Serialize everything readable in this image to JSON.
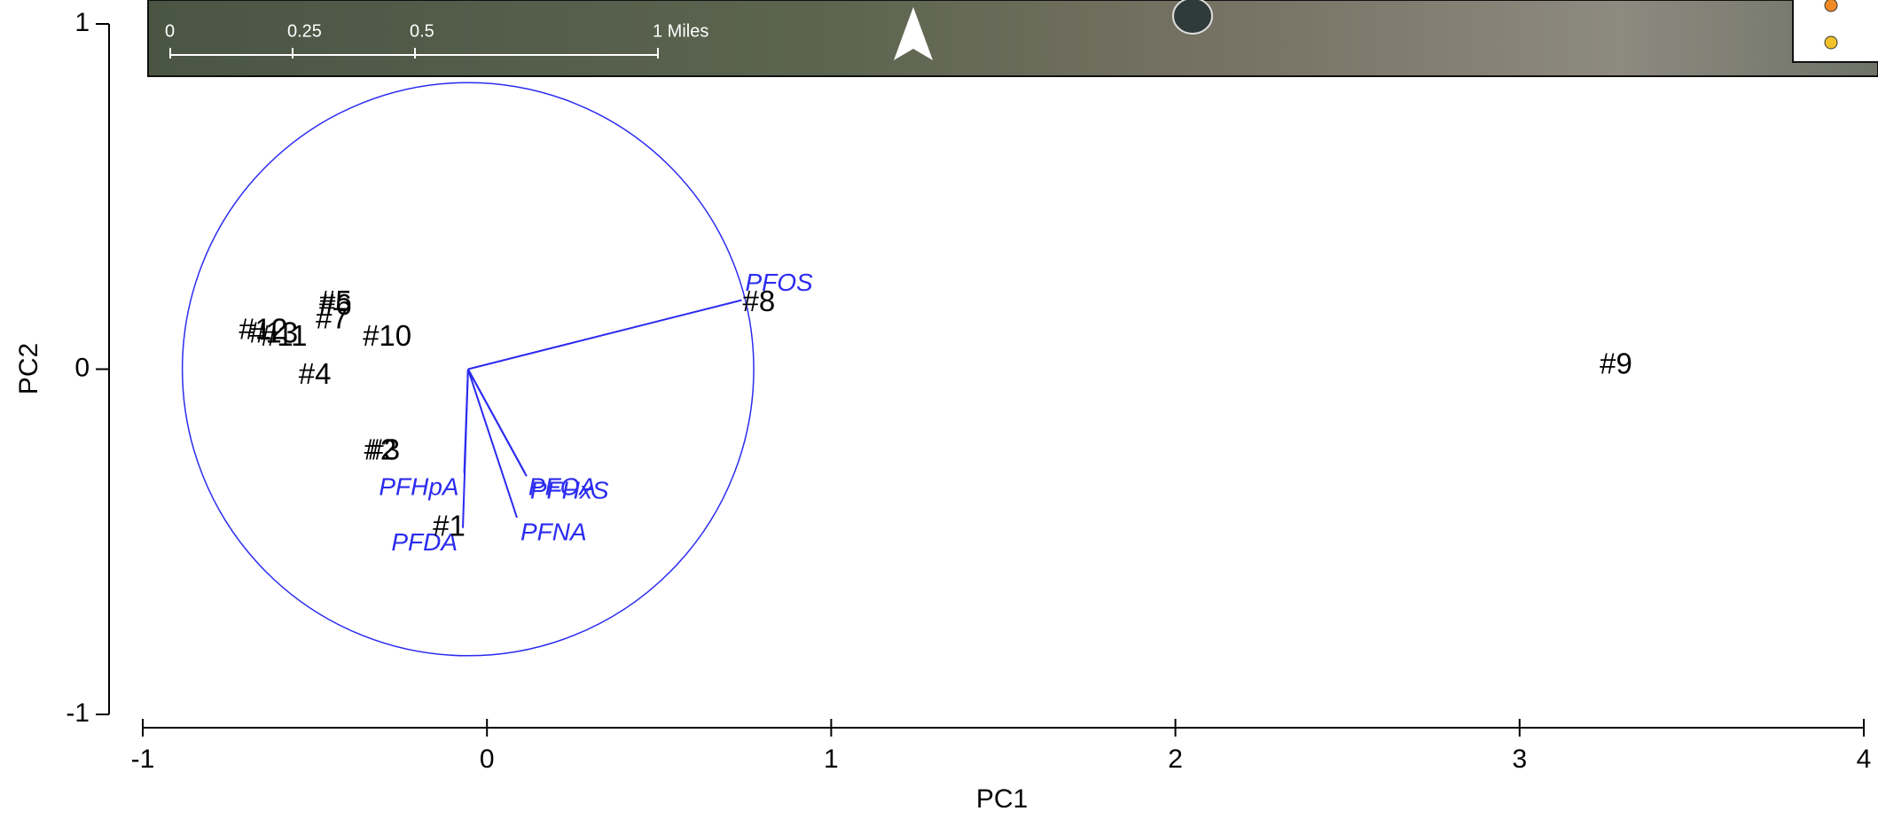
{
  "chart_data": {
    "type": "biplot",
    "xlabel": "PC1",
    "ylabel": "PC2",
    "xlim": [
      -1,
      4
    ],
    "ylim": [
      -1,
      1
    ],
    "xticks": [
      -1,
      0,
      1,
      2,
      3,
      4
    ],
    "yticks": [
      -1,
      0,
      1
    ],
    "scores": {
      "color": "#000000",
      "labels": [
        "#1",
        "#2",
        "#3",
        "#4",
        "#5",
        "#6",
        "#7",
        "#8",
        "#9",
        "#10",
        "#11",
        "#12",
        "#13"
      ],
      "x": [
        -0.11,
        -0.31,
        -0.3,
        -0.5,
        -0.44,
        -0.44,
        -0.45,
        0.79,
        3.28,
        -0.29,
        -0.59,
        -0.65,
        -0.62
      ],
      "y": [
        -0.46,
        -0.24,
        -0.24,
        -0.02,
        0.19,
        0.18,
        0.14,
        0.19,
        0.01,
        0.09,
        0.09,
        0.11,
        0.1
      ]
    },
    "loadings": {
      "color": "#2b2bf0",
      "origin": [
        -0.055,
        0
      ],
      "circle_radius": 0.83,
      "labels": [
        "PFOS",
        "PFHxS",
        "PFOA",
        "PFNA",
        "PFHpA",
        "PFDA"
      ],
      "x": [
        0.74,
        0.115,
        0.11,
        0.087,
        -0.066,
        -0.07
      ],
      "y": [
        0.2,
        -0.31,
        -0.3,
        -0.43,
        -0.3,
        -0.46
      ]
    }
  },
  "map": {
    "scale_labels": [
      "0",
      "0.25",
      "0.5",
      "1 Miles"
    ]
  }
}
